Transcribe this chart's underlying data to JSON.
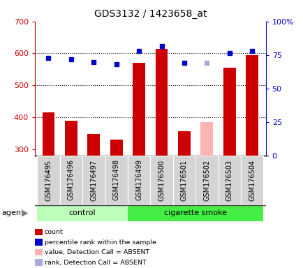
{
  "title": "GDS3132 / 1423658_at",
  "samples": [
    "GSM176495",
    "GSM176496",
    "GSM176497",
    "GSM176498",
    "GSM176499",
    "GSM176500",
    "GSM176501",
    "GSM176502",
    "GSM176503",
    "GSM176504"
  ],
  "bar_values": [
    415,
    388,
    348,
    330,
    570,
    615,
    355,
    385,
    555,
    595
  ],
  "bar_colors": [
    "#cc0000",
    "#cc0000",
    "#cc0000",
    "#cc0000",
    "#cc0000",
    "#cc0000",
    "#cc0000",
    "#ffb3b3",
    "#cc0000",
    "#cc0000"
  ],
  "dot_values": [
    585,
    582,
    572,
    565,
    607,
    622,
    570,
    570,
    600,
    607
  ],
  "dot_colors": [
    "#0000cc",
    "#0000cc",
    "#0000cc",
    "#0000cc",
    "#0000cc",
    "#0000cc",
    "#0000cc",
    "#aaaadd",
    "#0000cc",
    "#0000cc"
  ],
  "groups": [
    {
      "label": "control",
      "start": 0,
      "end": 3,
      "color": "#bbffbb"
    },
    {
      "label": "cigarette smoke",
      "start": 4,
      "end": 9,
      "color": "#44ee44"
    }
  ],
  "group_label": "agent",
  "ylim_left": [
    280,
    700
  ],
  "ylim_right": [
    0,
    100
  ],
  "yticks_left": [
    300,
    400,
    500,
    600,
    700
  ],
  "yticks_right": [
    0,
    25,
    50,
    75,
    100
  ],
  "grid_values": [
    400,
    500,
    600
  ],
  "left_axis_color": "#cc0000",
  "right_axis_color": "#0000cc",
  "plot_bg_color": "#ffffff",
  "tick_area_color": "#d0d0d0",
  "legend": [
    {
      "label": "count",
      "color": "#cc0000"
    },
    {
      "label": "percentile rank within the sample",
      "color": "#0000cc"
    },
    {
      "label": "value, Detection Call = ABSENT",
      "color": "#ffb3b3"
    },
    {
      "label": "rank, Detection Call = ABSENT",
      "color": "#aaaadd"
    }
  ]
}
